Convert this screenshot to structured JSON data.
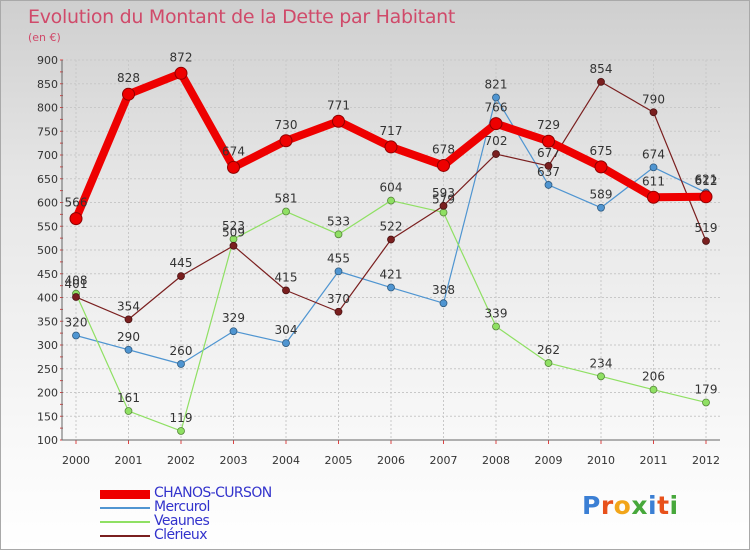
{
  "title": "Evolution du Montant de la Dette par Habitant",
  "subtitle": "(en €)",
  "logo_text": "Proxiti",
  "chart_data": {
    "type": "line",
    "categories": [
      "2000",
      "2001",
      "2002",
      "2003",
      "2004",
      "2005",
      "2006",
      "2007",
      "2008",
      "2009",
      "2010",
      "2011",
      "2012"
    ],
    "ylim": [
      100,
      900
    ],
    "yticks": [
      100,
      150,
      200,
      250,
      300,
      350,
      400,
      450,
      500,
      550,
      600,
      650,
      700,
      750,
      800,
      850,
      900
    ],
    "grid": true,
    "legend_position": "bottom-left",
    "series": [
      {
        "name": "CHANOS-CURSON",
        "color": "#ee0000",
        "values": [
          566,
          828,
          872,
          674,
          730,
          771,
          717,
          678,
          766,
          729,
          675,
          611,
          612
        ]
      },
      {
        "name": "Mercurol",
        "color": "#4f95d1",
        "values": [
          320,
          290,
          260,
          329,
          304,
          455,
          421,
          388,
          821,
          637,
          589,
          674,
          621
        ]
      },
      {
        "name": "Veaunes",
        "color": "#8fe063",
        "values": [
          408,
          161,
          119,
          523,
          581,
          533,
          604,
          579,
          339,
          262,
          234,
          206,
          179
        ]
      },
      {
        "name": "Clérieux",
        "color": "#7a1f1f",
        "values": [
          401,
          354,
          445,
          509,
          415,
          370,
          522,
          593,
          702,
          677,
          854,
          790,
          519
        ]
      }
    ]
  }
}
